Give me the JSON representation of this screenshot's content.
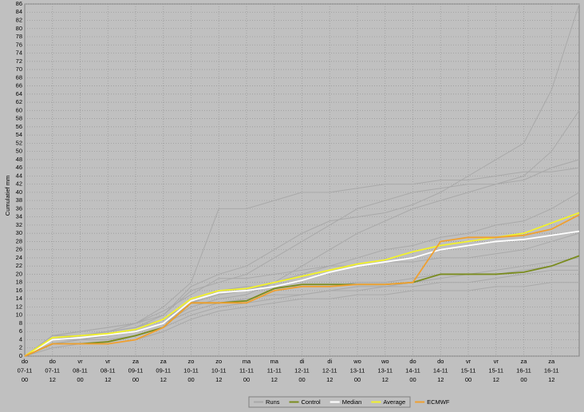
{
  "chart_data": {
    "type": "line",
    "y_label": "Cumulatief mm",
    "categories": [
      [
        "do",
        "07-11",
        "00"
      ],
      [
        "do",
        "07-11",
        "12"
      ],
      [
        "vr",
        "08-11",
        "00"
      ],
      [
        "vr",
        "08-11",
        "12"
      ],
      [
        "za",
        "09-11",
        "00"
      ],
      [
        "za",
        "09-11",
        "12"
      ],
      [
        "zo",
        "10-11",
        "00"
      ],
      [
        "zo",
        "10-11",
        "12"
      ],
      [
        "ma",
        "11-11",
        "00"
      ],
      [
        "ma",
        "11-11",
        "12"
      ],
      [
        "di",
        "12-11",
        "00"
      ],
      [
        "di",
        "12-11",
        "12"
      ],
      [
        "wo",
        "13-11",
        "00"
      ],
      [
        "wo",
        "13-11",
        "12"
      ],
      [
        "do",
        "14-11",
        "00"
      ],
      [
        "do",
        "14-11",
        "12"
      ],
      [
        "vr",
        "15-11",
        "00"
      ],
      [
        "vr",
        "15-11",
        "12"
      ],
      [
        "za",
        "16-11",
        "00"
      ],
      [
        "za",
        "16-11",
        "12"
      ],
      null
    ],
    "ylim": [
      0,
      86
    ],
    "yticks": [
      0,
      2,
      4,
      6,
      8,
      10,
      12,
      14,
      16,
      18,
      20,
      22,
      24,
      26,
      28,
      30,
      32,
      34,
      36,
      38,
      40,
      42,
      44,
      46,
      48,
      50,
      52,
      54,
      56,
      58,
      60,
      62,
      64,
      66,
      68,
      70,
      72,
      74,
      76,
      78,
      80,
      82,
      84,
      86
    ],
    "grid": true,
    "series": [
      {
        "name": "Runs",
        "color": "#a9a9a9",
        "runs": [
          [
            0,
            5,
            6,
            7,
            8,
            11,
            15,
            19,
            19,
            20,
            21,
            22,
            22,
            23,
            23,
            24,
            24,
            25,
            26,
            28,
            30
          ],
          [
            0,
            4,
            4,
            5,
            6,
            8,
            12,
            14,
            15,
            18,
            22,
            26,
            30,
            33,
            36,
            38,
            40,
            42,
            44,
            50,
            60
          ],
          [
            0,
            3,
            4,
            4,
            5,
            7,
            10,
            12,
            13,
            14,
            15,
            16,
            17,
            17,
            18,
            19,
            20,
            21,
            22,
            23,
            24
          ],
          [
            0,
            5,
            6,
            7,
            8,
            10,
            16,
            18,
            20,
            24,
            28,
            32,
            36,
            38,
            40,
            41,
            42,
            42,
            43,
            46,
            48
          ],
          [
            0,
            4,
            5,
            6,
            7,
            9,
            13,
            16,
            17,
            17,
            17,
            17,
            18,
            18,
            19,
            20,
            20,
            20,
            21,
            22,
            22
          ],
          [
            0,
            5,
            5,
            6,
            7,
            10,
            17,
            20,
            22,
            26,
            30,
            33,
            34,
            35,
            37,
            40,
            44,
            48,
            52,
            65,
            86
          ],
          [
            0,
            2,
            3,
            3,
            4,
            6,
            9,
            11,
            12,
            13,
            14,
            14,
            15,
            15,
            16,
            16,
            16,
            17,
            17,
            18,
            18
          ],
          [
            0,
            4,
            5,
            6,
            8,
            12,
            18,
            36,
            36,
            38,
            40,
            40,
            41,
            42,
            42,
            43,
            43,
            44,
            45,
            45,
            46
          ],
          [
            0,
            3,
            4,
            5,
            6,
            8,
            11,
            13,
            14,
            15,
            15,
            16,
            16,
            17,
            17,
            18,
            18,
            19,
            20,
            21,
            21
          ],
          [
            0,
            4,
            5,
            5,
            6,
            8,
            13,
            15,
            16,
            18,
            20,
            22,
            24,
            26,
            27,
            29,
            30,
            32,
            33,
            36,
            40
          ]
        ]
      },
      {
        "name": "Control",
        "color": "#7a8c1e",
        "values": [
          0,
          3,
          3,
          3.5,
          5,
          7,
          13,
          13,
          13.5,
          16.5,
          17.5,
          17.5,
          17.5,
          17.5,
          18,
          20,
          20,
          20,
          20.5,
          22,
          24.5
        ]
      },
      {
        "name": "Median",
        "color": "#ffffff",
        "values": [
          0,
          4,
          4.5,
          5.2,
          6,
          8,
          13.5,
          15.5,
          16,
          17,
          18.5,
          20.5,
          22,
          23,
          24,
          26,
          27,
          28,
          28.5,
          29.5,
          30.5
        ]
      },
      {
        "name": "Average",
        "color": "#f2f22a",
        "values": [
          0,
          4.5,
          5,
          5.5,
          6.5,
          9,
          14,
          16,
          16.5,
          18,
          19.5,
          21,
          22.5,
          23.5,
          25.5,
          27,
          28,
          29,
          30,
          32.5,
          35
        ]
      },
      {
        "name": "ECMWF",
        "color": "#f0a030",
        "values": [
          0,
          3,
          3,
          3,
          4,
          7,
          13,
          13,
          13,
          16,
          17,
          17,
          17.5,
          17.5,
          18,
          28,
          29,
          29,
          29.5,
          31,
          34.5
        ]
      }
    ]
  }
}
